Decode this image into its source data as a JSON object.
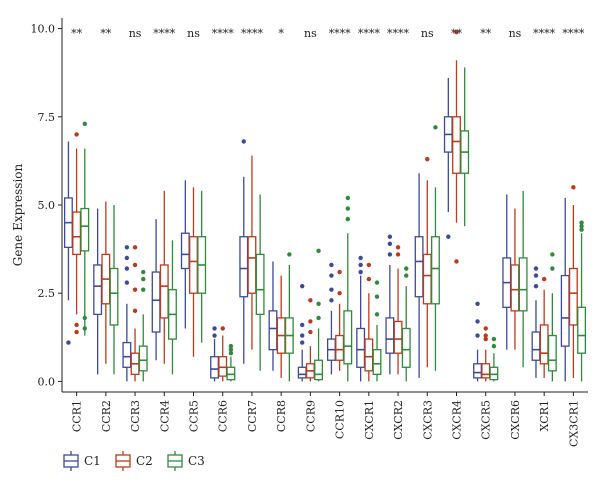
{
  "chart_data": {
    "type": "boxplot",
    "ylabel": "Gene Expression",
    "xlabel": "",
    "ylim": [
      -0.3,
      10.3
    ],
    "yticks": [
      "0.0",
      "2.5",
      "5.0",
      "7.5",
      "10.0"
    ],
    "ytick_values": [
      0,
      2.5,
      5,
      7.5,
      10
    ],
    "legend_position": "bottom-left",
    "colors": {
      "C1": "#3b4a9e",
      "C2": "#c0391b",
      "C3": "#2e8b3a"
    },
    "categories": [
      "CCR1",
      "CCR2",
      "CCR3",
      "CCR4",
      "CCR5",
      "CCR6",
      "CCR7",
      "CCR8",
      "CCR9",
      "CCR10",
      "CXCR1",
      "CXCR2",
      "CXCR3",
      "CXCR4",
      "CXCR5",
      "CXCR6",
      "XCR1",
      "CX3CR1"
    ],
    "significance": [
      "**",
      "**",
      "ns",
      "****",
      "ns",
      "****",
      "****",
      "*",
      "ns",
      "****",
      "****",
      "****",
      "ns",
      "**",
      "**",
      "ns",
      "****",
      "****"
    ],
    "series": [
      {
        "name": "C1",
        "boxes": [
          {
            "wlo": 2.3,
            "q1": 3.8,
            "med": 4.5,
            "q3": 5.2,
            "whi": 6.8,
            "out": [
              1.1
            ]
          },
          {
            "wlo": 0.2,
            "q1": 1.9,
            "med": 2.7,
            "q3": 3.3,
            "whi": 4.9,
            "out": []
          },
          {
            "wlo": 0.0,
            "q1": 0.4,
            "med": 0.7,
            "q3": 1.1,
            "whi": 2.2,
            "out": [
              3.8,
              3.5,
              3.2,
              2.8
            ]
          },
          {
            "wlo": 0.6,
            "q1": 1.4,
            "med": 2.3,
            "q3": 3.1,
            "whi": 4.6,
            "out": []
          },
          {
            "wlo": 1.5,
            "q1": 3.2,
            "med": 3.6,
            "q3": 4.2,
            "whi": 5.7,
            "out": []
          },
          {
            "wlo": 0.0,
            "q1": 0.1,
            "med": 0.35,
            "q3": 0.7,
            "whi": 1.2,
            "out": [
              1.5,
              1.3
            ]
          },
          {
            "wlo": 0.5,
            "q1": 2.4,
            "med": 3.2,
            "q3": 4.1,
            "whi": 5.8,
            "out": [
              6.8
            ]
          },
          {
            "wlo": 0.3,
            "q1": 0.9,
            "med": 1.5,
            "q3": 2.0,
            "whi": 3.4,
            "out": []
          },
          {
            "wlo": 0.0,
            "q1": 0.1,
            "med": 0.2,
            "q3": 0.4,
            "whi": 0.9,
            "out": [
              1.6,
              1.3,
              1.1,
              2.7
            ]
          },
          {
            "wlo": 0.2,
            "q1": 0.6,
            "med": 0.9,
            "q3": 1.2,
            "whi": 2.0,
            "out": [
              2.3,
              2.6,
              3.0,
              3.3
            ]
          },
          {
            "wlo": 0.0,
            "q1": 0.4,
            "med": 0.9,
            "q3": 1.5,
            "whi": 3.0,
            "out": [
              3.5,
              3.3,
              3.1
            ]
          },
          {
            "wlo": 0.2,
            "q1": 0.8,
            "med": 1.2,
            "q3": 1.8,
            "whi": 3.3,
            "out": [
              3.6,
              3.9,
              4.1
            ]
          },
          {
            "wlo": 0.1,
            "q1": 2.4,
            "med": 3.4,
            "q3": 4.1,
            "whi": 5.9,
            "out": []
          },
          {
            "wlo": 4.8,
            "q1": 6.5,
            "med": 7.0,
            "q3": 7.5,
            "whi": 8.6,
            "out": [
              4.1
            ]
          },
          {
            "wlo": 0.0,
            "q1": 0.1,
            "med": 0.25,
            "q3": 0.5,
            "whi": 0.9,
            "out": [
              1.3,
              1.7,
              2.2
            ]
          },
          {
            "wlo": 0.9,
            "q1": 2.1,
            "med": 2.8,
            "q3": 3.5,
            "whi": 5.3,
            "out": []
          },
          {
            "wlo": 0.1,
            "q1": 0.6,
            "med": 0.9,
            "q3": 1.4,
            "whi": 2.3,
            "out": [
              2.7,
              3.0,
              3.2
            ]
          },
          {
            "wlo": 0.0,
            "q1": 1.0,
            "med": 1.8,
            "q3": 3.0,
            "whi": 5.2,
            "out": []
          }
        ]
      },
      {
        "name": "C2",
        "boxes": [
          {
            "wlo": 1.9,
            "q1": 3.6,
            "med": 4.1,
            "q3": 4.8,
            "whi": 6.6,
            "out": [
              1.6,
              1.4,
              7.0
            ]
          },
          {
            "wlo": 0.5,
            "q1": 2.2,
            "med": 2.9,
            "q3": 3.6,
            "whi": 5.1,
            "out": []
          },
          {
            "wlo": 0.0,
            "q1": 0.2,
            "med": 0.5,
            "q3": 0.8,
            "whi": 1.5,
            "out": [
              3.8,
              3.3,
              2.6,
              2.0
            ]
          },
          {
            "wlo": 0.5,
            "q1": 1.8,
            "med": 2.7,
            "q3": 3.3,
            "whi": 5.4,
            "out": []
          },
          {
            "wlo": 0.7,
            "q1": 2.5,
            "med": 3.4,
            "q3": 4.1,
            "whi": 5.5,
            "out": []
          },
          {
            "wlo": 0.0,
            "q1": 0.15,
            "med": 0.4,
            "q3": 0.7,
            "whi": 1.3,
            "out": [
              1.5
            ]
          },
          {
            "wlo": 0.9,
            "q1": 2.5,
            "med": 3.5,
            "q3": 4.1,
            "whi": 6.4,
            "out": []
          },
          {
            "wlo": 0.1,
            "q1": 0.8,
            "med": 1.3,
            "q3": 1.8,
            "whi": 3.0,
            "out": []
          },
          {
            "wlo": 0.0,
            "q1": 0.1,
            "med": 0.3,
            "q3": 0.5,
            "whi": 1.0,
            "out": [
              1.4,
              1.7,
              2.3
            ]
          },
          {
            "wlo": 0.3,
            "q1": 0.6,
            "med": 0.9,
            "q3": 1.3,
            "whi": 2.2,
            "out": [
              2.5,
              3.1
            ]
          },
          {
            "wlo": 0.0,
            "q1": 0.3,
            "med": 0.7,
            "q3": 1.2,
            "whi": 2.5,
            "out": [
              2.9,
              3.3
            ]
          },
          {
            "wlo": 0.2,
            "q1": 0.8,
            "med": 1.2,
            "q3": 1.7,
            "whi": 3.2,
            "out": [
              3.6,
              3.8
            ]
          },
          {
            "wlo": 0.4,
            "q1": 2.2,
            "med": 3.0,
            "q3": 3.6,
            "whi": 5.7,
            "out": [
              6.3
            ]
          },
          {
            "wlo": 4.5,
            "q1": 5.9,
            "med": 6.8,
            "q3": 7.5,
            "whi": 9.1,
            "out": [
              9.9,
              3.4
            ]
          },
          {
            "wlo": 0.0,
            "q1": 0.1,
            "med": 0.2,
            "q3": 0.5,
            "whi": 0.9,
            "out": [
              1.2,
              1.5,
              1.3
            ]
          },
          {
            "wlo": 0.9,
            "q1": 2.0,
            "med": 2.6,
            "q3": 3.3,
            "whi": 4.9,
            "out": []
          },
          {
            "wlo": 0.1,
            "q1": 0.5,
            "med": 0.8,
            "q3": 1.6,
            "whi": 2.6,
            "out": [
              2.9
            ]
          },
          {
            "wlo": 0.1,
            "q1": 1.6,
            "med": 2.5,
            "q3": 3.2,
            "whi": 5.0,
            "out": [
              5.5
            ]
          }
        ]
      },
      {
        "name": "C3",
        "boxes": [
          {
            "wlo": 1.3,
            "q1": 3.7,
            "med": 4.4,
            "q3": 4.9,
            "whi": 6.6,
            "out": [
              7.3,
              1.8,
              1.5
            ]
          },
          {
            "wlo": 0.2,
            "q1": 1.6,
            "med": 2.5,
            "q3": 3.2,
            "whi": 5.0,
            "out": []
          },
          {
            "wlo": 0.0,
            "q1": 0.3,
            "med": 0.6,
            "q3": 1.0,
            "whi": 1.9,
            "out": [
              2.6,
              2.9,
              3.1
            ]
          },
          {
            "wlo": 0.2,
            "q1": 1.2,
            "med": 1.9,
            "q3": 2.6,
            "whi": 4.0,
            "out": []
          },
          {
            "wlo": 1.1,
            "q1": 2.5,
            "med": 3.3,
            "q3": 4.1,
            "whi": 5.4,
            "out": []
          },
          {
            "wlo": 0.0,
            "q1": 0.05,
            "med": 0.2,
            "q3": 0.4,
            "whi": 0.7,
            "out": [
              1.0,
              0.9,
              0.8
            ]
          },
          {
            "wlo": 0.3,
            "q1": 1.9,
            "med": 2.6,
            "q3": 3.6,
            "whi": 5.3,
            "out": []
          },
          {
            "wlo": 0.0,
            "q1": 0.8,
            "med": 1.3,
            "q3": 1.8,
            "whi": 3.3,
            "out": [
              3.6
            ]
          },
          {
            "wlo": 0.0,
            "q1": 0.05,
            "med": 0.2,
            "q3": 0.6,
            "whi": 1.5,
            "out": [
              1.8,
              2.2,
              3.7
            ]
          },
          {
            "wlo": 0.0,
            "q1": 0.5,
            "med": 1.0,
            "q3": 2.0,
            "whi": 4.2,
            "out": [
              4.9,
              5.2,
              4.6
            ]
          },
          {
            "wlo": 0.0,
            "q1": 0.2,
            "med": 0.5,
            "q3": 0.9,
            "whi": 1.6,
            "out": [
              1.9,
              2.4,
              2.8
            ]
          },
          {
            "wlo": 0.0,
            "q1": 0.4,
            "med": 0.9,
            "q3": 1.5,
            "whi": 2.7,
            "out": [
              3.2,
              3.0
            ]
          },
          {
            "wlo": 0.3,
            "q1": 2.2,
            "med": 3.2,
            "q3": 4.1,
            "whi": 5.5,
            "out": [
              7.2
            ]
          },
          {
            "wlo": 4.4,
            "q1": 5.9,
            "med": 6.5,
            "q3": 7.1,
            "whi": 8.9,
            "out": []
          },
          {
            "wlo": 0.0,
            "q1": 0.05,
            "med": 0.2,
            "q3": 0.4,
            "whi": 0.8,
            "out": [
              1.0,
              1.2
            ]
          },
          {
            "wlo": 0.4,
            "q1": 2.0,
            "med": 2.6,
            "q3": 3.5,
            "whi": 5.4,
            "out": []
          },
          {
            "wlo": 0.0,
            "q1": 0.3,
            "med": 0.6,
            "q3": 1.3,
            "whi": 2.5,
            "out": [
              3.6,
              3.2
            ]
          },
          {
            "wlo": 0.0,
            "q1": 0.8,
            "med": 1.3,
            "q3": 2.1,
            "whi": 4.2,
            "out": [
              4.5,
              4.3,
              4.4
            ]
          }
        ]
      }
    ]
  }
}
